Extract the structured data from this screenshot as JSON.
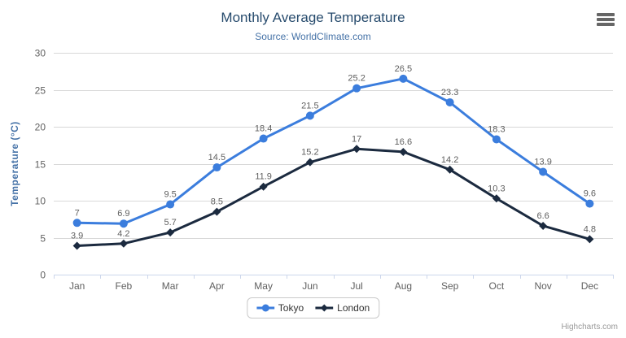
{
  "title": "Monthly Average Temperature",
  "subtitle": "Source: WorldClimate.com",
  "credits": "Highcharts.com",
  "colors": {
    "title": "#274b6d",
    "subtitle": "#4572a7",
    "axis_title": "#4572a7",
    "axis_label": "#606060",
    "axis_line": "#ccd6eb",
    "gridline": "#d8d8d8",
    "data_label": "#606060",
    "legend_text": "#333333",
    "credits": "#999999",
    "menu_icon": "#666666",
    "background": "#ffffff"
  },
  "chart_data": {
    "type": "line",
    "title": "Monthly Average Temperature",
    "subtitle": "Source: WorldClimate.com",
    "categories": [
      "Jan",
      "Feb",
      "Mar",
      "Apr",
      "May",
      "Jun",
      "Jul",
      "Aug",
      "Sep",
      "Oct",
      "Nov",
      "Dec"
    ],
    "series": [
      {
        "name": "Tokyo",
        "color": "#3b7ddd",
        "marker": "circle",
        "values": [
          7,
          6.9,
          9.5,
          14.5,
          18.4,
          21.5,
          25.2,
          26.5,
          23.3,
          18.3,
          13.9,
          9.6
        ]
      },
      {
        "name": "London",
        "color": "#1b2a3f",
        "marker": "diamond",
        "values": [
          3.9,
          4.2,
          5.7,
          8.5,
          11.9,
          15.2,
          17,
          16.6,
          14.2,
          10.3,
          6.6,
          4.8
        ]
      }
    ],
    "xlabel": "",
    "ylabel": "Temperature (°C)",
    "ylim": [
      0,
      30
    ],
    "ytick_interval": 5,
    "yticks": [
      0,
      5,
      10,
      15,
      20,
      25,
      30
    ],
    "grid": "horizontal",
    "legend_position": "bottom",
    "data_labels": true
  }
}
